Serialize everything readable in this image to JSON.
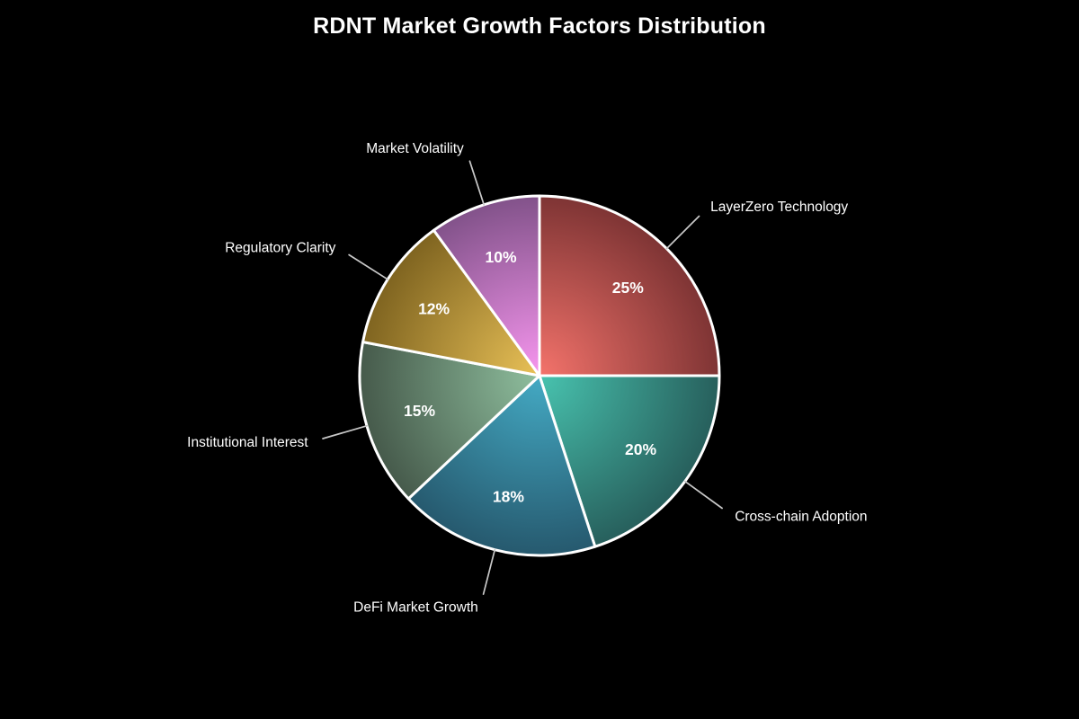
{
  "chart_data": {
    "type": "pie",
    "title": "RDNT Market Growth Factors Distribution",
    "categories": [
      "LayerZero Technology",
      "Cross-chain Adoption",
      "DeFi Market Growth",
      "Institutional Interest",
      "Regulatory Clarity",
      "Market Volatility"
    ],
    "values": [
      25,
      20,
      18,
      15,
      12,
      10
    ],
    "slices": [
      {
        "label": "LayerZero Technology",
        "value": 25,
        "percent_label": "25%",
        "color_center": "#f4736b",
        "color_edge": "#7e3434"
      },
      {
        "label": "Cross-chain Adoption",
        "value": 20,
        "percent_label": "20%",
        "color_center": "#48c3af",
        "color_edge": "#275f5c"
      },
      {
        "label": "DeFi Market Growth",
        "value": 18,
        "percent_label": "18%",
        "color_center": "#44aac4",
        "color_edge": "#26596e"
      },
      {
        "label": "Institutional Interest",
        "value": 15,
        "percent_label": "15%",
        "color_center": "#8fbf9e",
        "color_edge": "#465a4b"
      },
      {
        "label": "Regulatory Clarity",
        "value": 12,
        "percent_label": "12%",
        "color_center": "#e9c157",
        "color_edge": "#7f6420"
      },
      {
        "label": "Market Volatility",
        "value": 10,
        "percent_label": "10%",
        "color_center": "#f796ef",
        "color_edge": "#82528a"
      }
    ],
    "start_angle": "top",
    "direction": "clockwise",
    "percent_labels_inside": true,
    "category_labels_outside": true,
    "legend": "none",
    "background": "#000000",
    "title_color": "#ffffff",
    "label_color": "#ffffff",
    "percent_label_color": "#ffffff",
    "slice_border_color": "#ffffff",
    "leader_line_color": "#c8c8c8",
    "shading": "radial gradient, light at pie center to dark at rim"
  }
}
